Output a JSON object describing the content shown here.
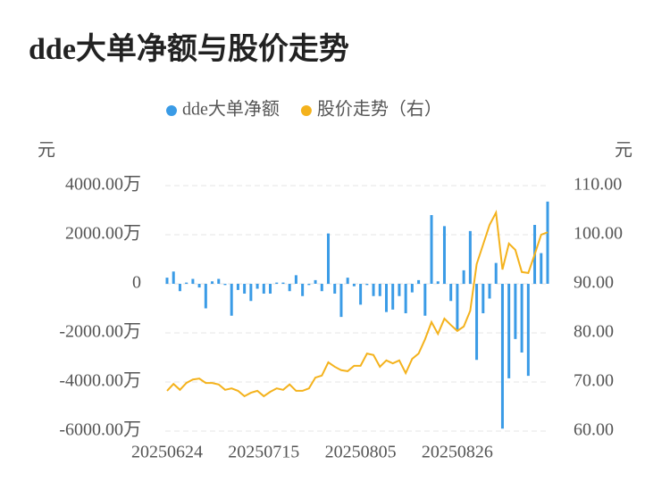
{
  "chart_data": {
    "type": "bar_line",
    "title": "dde大单净额与股价走势",
    "y_unit": "元",
    "y2_unit": "元",
    "categories": [
      "20250624",
      null,
      null,
      null,
      null,
      null,
      null,
      null,
      null,
      null,
      null,
      null,
      null,
      null,
      null,
      "20250715",
      null,
      null,
      null,
      null,
      null,
      null,
      null,
      null,
      null,
      null,
      null,
      null,
      null,
      null,
      "20250805",
      null,
      null,
      null,
      null,
      null,
      null,
      null,
      null,
      null,
      null,
      null,
      null,
      null,
      null,
      "20250826",
      null,
      null,
      null,
      null,
      null,
      null,
      null,
      null,
      null,
      null,
      null,
      null,
      null,
      null
    ],
    "series": [
      {
        "name": "dde大单净额",
        "color": "#3a9be6",
        "type": "bar",
        "axis": "y",
        "values": [
          250,
          500,
          -300,
          50,
          200,
          -150,
          -1000,
          100,
          200,
          -50,
          -1300,
          -250,
          -400,
          -700,
          -200,
          -400,
          -400,
          50,
          50,
          -300,
          350,
          -500,
          -50,
          150,
          -300,
          2050,
          -400,
          -1350,
          250,
          -100,
          -850,
          -50,
          -500,
          -500,
          -1150,
          -1050,
          -500,
          -1200,
          -350,
          150,
          -1300,
          2800,
          100,
          2350,
          -700,
          -1900,
          550,
          2150,
          -3100,
          -1200,
          -600,
          850,
          -5900,
          -3850,
          -2250,
          -2800,
          -3750,
          2400,
          1250,
          3350
        ]
      },
      {
        "name": "股价走势（右）",
        "color": "#f4b21c",
        "type": "line",
        "axis": "y2",
        "values": [
          68.2,
          69.6,
          68.4,
          69.8,
          70.5,
          70.7,
          69.8,
          69.8,
          69.5,
          68.4,
          68.7,
          68.2,
          67.1,
          67.8,
          68.2,
          67.1,
          68.0,
          68.7,
          68.4,
          69.5,
          68.2,
          68.2,
          68.7,
          70.9,
          71.3,
          74.0,
          73.1,
          72.4,
          72.2,
          73.3,
          73.3,
          75.8,
          75.5,
          73.1,
          74.4,
          73.8,
          74.4,
          71.8,
          74.7,
          75.8,
          78.7,
          82.2,
          79.8,
          82.9,
          81.6,
          80.4,
          81.3,
          84.5,
          94.0,
          98.0,
          102.0,
          104.5,
          92.9,
          98.2,
          96.9,
          92.4,
          92.2,
          96.0,
          100.0,
          100.5
        ]
      }
    ],
    "ylim": [
      -6000,
      4000
    ],
    "yticks": [
      {
        "value": 4000,
        "label": "4000.00万"
      },
      {
        "value": 2000,
        "label": "2000.00万"
      },
      0,
      {
        "value": -2000,
        "label": "-2000.00万"
      },
      {
        "value": -4000,
        "label": "-4000.00万"
      },
      {
        "value": -6000,
        "label": "-6000.00万"
      }
    ],
    "y2lim": [
      60,
      110
    ],
    "y2ticks": [
      {
        "value": 110,
        "label": "110.00"
      },
      {
        "value": 100,
        "label": "100.00"
      },
      {
        "value": 90,
        "label": "90.00"
      },
      {
        "value": 80,
        "label": "80.00"
      },
      {
        "value": 70,
        "label": "70.00"
      },
      {
        "value": 60,
        "label": "60.00"
      }
    ],
    "grid": true,
    "legend": "top"
  }
}
